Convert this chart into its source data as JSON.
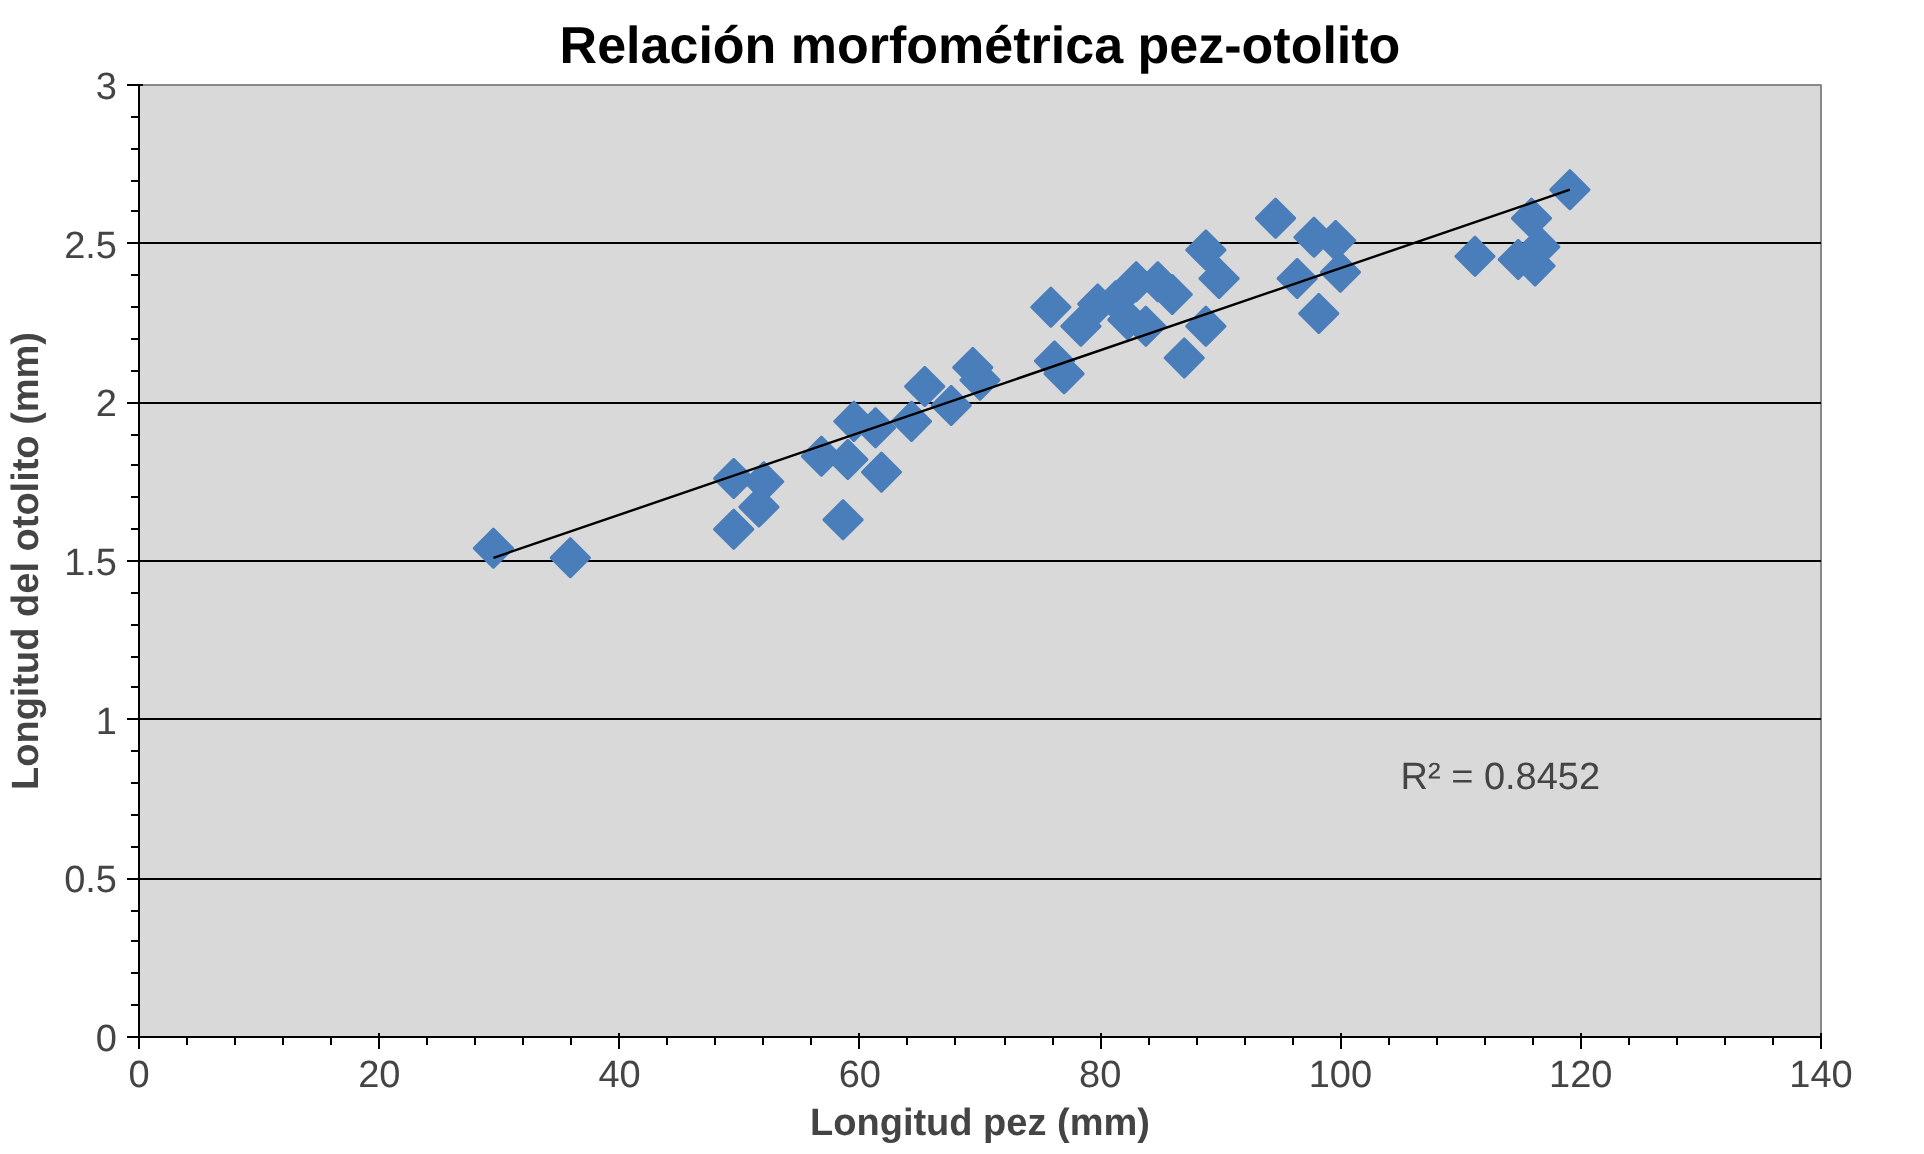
{
  "chart_data": {
    "type": "scatter",
    "title": "Relación morfométrica pez-otolito",
    "xlabel": "Longitud pez (mm)",
    "ylabel": "Longitud del otolito (mm)",
    "xlim": [
      0,
      140
    ],
    "xticks": [
      0,
      20,
      40,
      60,
      80,
      100,
      120,
      140
    ],
    "ylim": [
      0,
      3
    ],
    "yticks": [
      0,
      0.5,
      1,
      1.5,
      2,
      2.5,
      3
    ],
    "grid": "y",
    "annotations": [
      "R² = 0.8452"
    ],
    "series": [
      {
        "color": "#4a7ebb",
        "marker": "diamond",
        "x": [
          29.5,
          35.9,
          49.5,
          49.5,
          51.6,
          52,
          56.8,
          58.6,
          59,
          59.5,
          61.3,
          61.8,
          64.3,
          65.4,
          67.6,
          69.4,
          70,
          75.9,
          76.2,
          77,
          78.4,
          79.8,
          81.3,
          82.3,
          83,
          83.8,
          84.8,
          86,
          87,
          88.8,
          88.8,
          89.9,
          94.6,
          96.4,
          97.8,
          98.2,
          99.6,
          100,
          111.2,
          114.8,
          115.9,
          116.2,
          116.6,
          119.1
        ],
        "values": [
          1.54,
          1.51,
          1.76,
          1.6,
          1.67,
          1.75,
          1.83,
          1.63,
          1.82,
          1.94,
          1.92,
          1.78,
          1.94,
          2.05,
          1.99,
          2.11,
          2.07,
          2.3,
          2.13,
          2.09,
          2.24,
          2.31,
          2.32,
          2.26,
          2.38,
          2.24,
          2.38,
          2.34,
          2.14,
          2.48,
          2.24,
          2.39,
          2.58,
          2.39,
          2.52,
          2.28,
          2.51,
          2.41,
          2.46,
          2.45,
          2.58,
          2.43,
          2.49,
          2.67
        ]
      },
      {
        "type": "line",
        "color": "#000000",
        "line_style": "solid",
        "x": [
          29.5,
          119.1
        ],
        "values": [
          1.51,
          2.67
        ]
      }
    ]
  }
}
